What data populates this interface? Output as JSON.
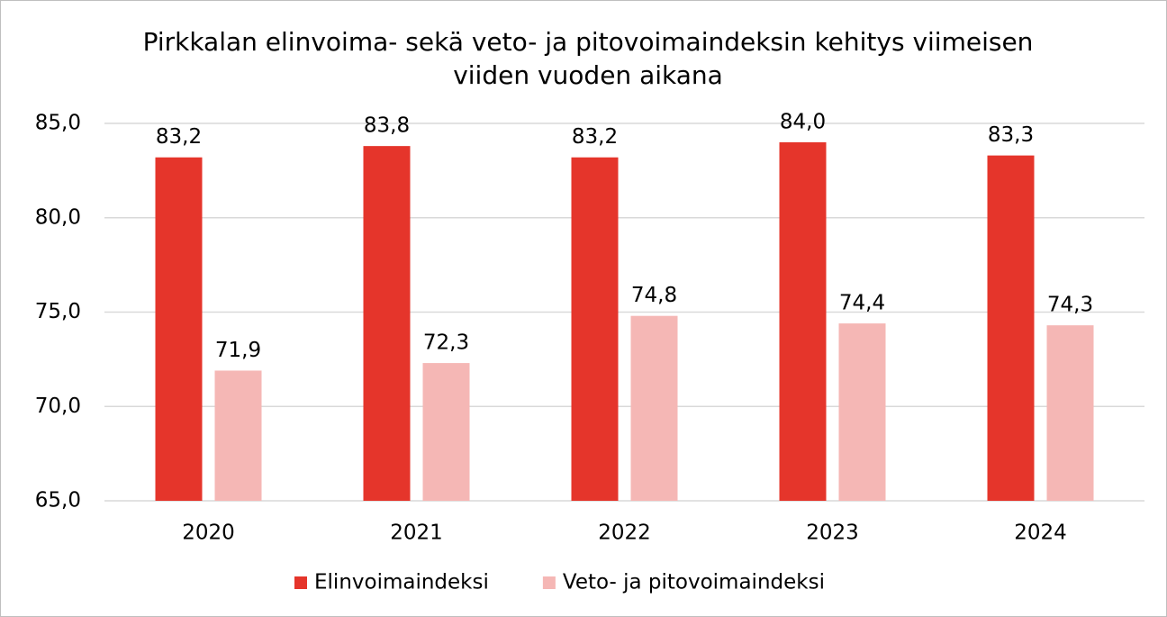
{
  "chart_data": {
    "type": "bar",
    "title": "Pirkkalan elinvoima- sekä veto- ja pitovoimaindeksin kehitys viimeisen viiden vuoden aikana",
    "categories": [
      "2020",
      "2021",
      "2022",
      "2023",
      "2024"
    ],
    "series": [
      {
        "name": "Elinvoimaindeksi",
        "color": "#e5352b",
        "values": [
          83.2,
          83.8,
          83.2,
          84.0,
          83.3
        ],
        "value_labels": [
          "83,2",
          "83,8",
          "83,2",
          "84,0",
          "83,3"
        ]
      },
      {
        "name": "Veto- ja pitovoimaindeksi",
        "color": "#f5b7b5",
        "values": [
          71.9,
          72.3,
          74.8,
          74.4,
          74.3
        ],
        "value_labels": [
          "71,9",
          "72,3",
          "74,8",
          "74,4",
          "74,3"
        ]
      }
    ],
    "ylim": [
      65,
      85
    ],
    "yticks": [
      {
        "value": 65,
        "label": "65,0"
      },
      {
        "value": 70,
        "label": "70,0"
      },
      {
        "value": 75,
        "label": "75,0"
      },
      {
        "value": 80,
        "label": "80,0"
      },
      {
        "value": 85,
        "label": "85,0"
      }
    ],
    "grid": true,
    "legend": "bottom"
  }
}
